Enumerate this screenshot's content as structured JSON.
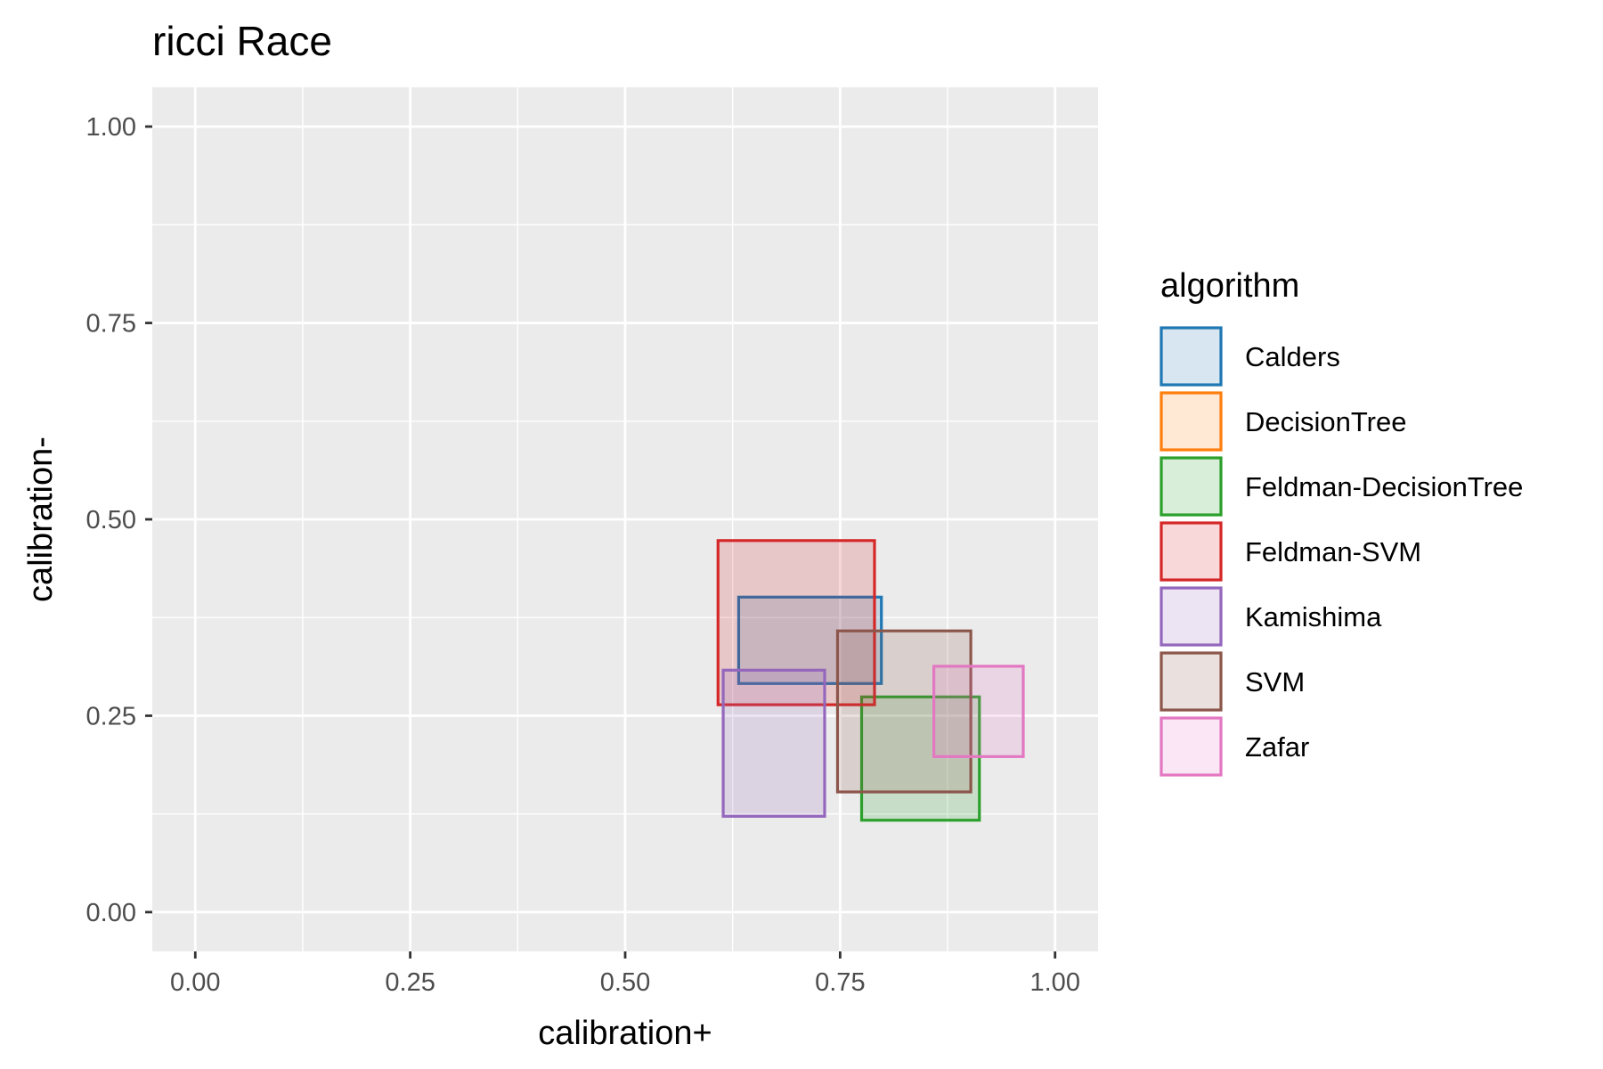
{
  "chart_data": {
    "type": "rectangle",
    "title": "ricci Race",
    "xlabel": "calibration+",
    "ylabel": "calibration-",
    "xlim": [
      -0.05,
      1.05
    ],
    "ylim": [
      -0.05,
      1.05
    ],
    "x_ticks": [
      "0.00",
      "0.25",
      "0.50",
      "0.75",
      "1.00"
    ],
    "y_ticks": [
      "0.00",
      "0.25",
      "0.50",
      "0.75",
      "1.00"
    ],
    "x_tick_values": [
      0,
      0.25,
      0.5,
      0.75,
      1.0
    ],
    "y_tick_values": [
      0,
      0.25,
      0.5,
      0.75,
      1.0
    ],
    "grid": true,
    "legend": {
      "title": "algorithm",
      "position": "right"
    },
    "series": [
      {
        "name": "Calders",
        "color": "#1f77b4",
        "xmin": 0.632,
        "xmax": 0.798,
        "ymin": 0.291,
        "ymax": 0.401
      },
      {
        "name": "DecisionTree",
        "color": "#ff7f0e",
        "xmin": null,
        "xmax": null,
        "ymin": null,
        "ymax": null
      },
      {
        "name": "Feldman-DecisionTree",
        "color": "#2ca02c",
        "xmin": 0.775,
        "xmax": 0.912,
        "ymin": 0.117,
        "ymax": 0.274
      },
      {
        "name": "Feldman-SVM",
        "color": "#d62728",
        "xmin": 0.608,
        "xmax": 0.79,
        "ymin": 0.264,
        "ymax": 0.473
      },
      {
        "name": "Kamishima",
        "color": "#9467bd",
        "xmin": 0.614,
        "xmax": 0.732,
        "ymin": 0.122,
        "ymax": 0.308
      },
      {
        "name": "SVM",
        "color": "#8c564b",
        "xmin": 0.747,
        "xmax": 0.902,
        "ymin": 0.153,
        "ymax": 0.358
      },
      {
        "name": "Zafar",
        "color": "#e377c2",
        "xmin": 0.859,
        "xmax": 0.963,
        "ymin": 0.198,
        "ymax": 0.313
      }
    ]
  }
}
